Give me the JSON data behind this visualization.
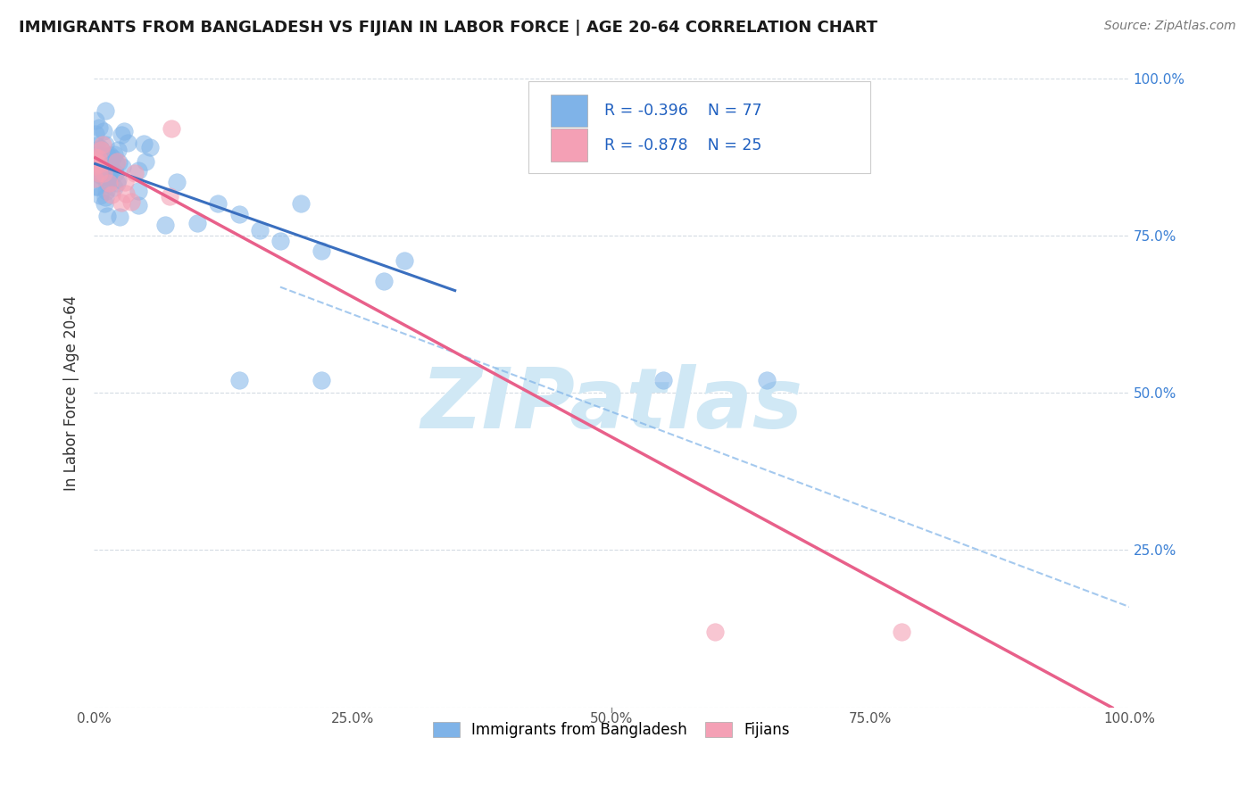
{
  "title": "IMMIGRANTS FROM BANGLADESH VS FIJIAN IN LABOR FORCE | AGE 20-64 CORRELATION CHART",
  "source": "Source: ZipAtlas.com",
  "ylabel": "In Labor Force | Age 20-64",
  "xlim": [
    0.0,
    1.0
  ],
  "ylim": [
    0.0,
    1.0
  ],
  "xticks": [
    0.0,
    0.25,
    0.5,
    0.75,
    1.0
  ],
  "yticks": [
    0.0,
    0.25,
    0.5,
    0.75,
    1.0
  ],
  "xtick_labels": [
    "0.0%",
    "25.0%",
    "50.0%",
    "75.0%",
    "100.0%"
  ],
  "ytick_labels_right": [
    "",
    "25.0%",
    "50.0%",
    "75.0%",
    "100.0%"
  ],
  "bangladesh_color": "#7fb3e8",
  "fijian_color": "#f4a0b5",
  "bangladesh_line_color": "#3a6fbf",
  "fijian_line_color": "#e8608a",
  "dashed_line_color": "#7fb3e8",
  "background_color": "#ffffff",
  "grid_color": "#d0d8e0",
  "watermark": "ZIPatlas",
  "watermark_color": "#d0e8f5",
  "bang_intercept": 0.865,
  "bang_slope": -0.58,
  "fiji_intercept": 0.875,
  "fiji_slope": -0.89,
  "dash_intercept": 0.78,
  "dash_slope": -0.62
}
